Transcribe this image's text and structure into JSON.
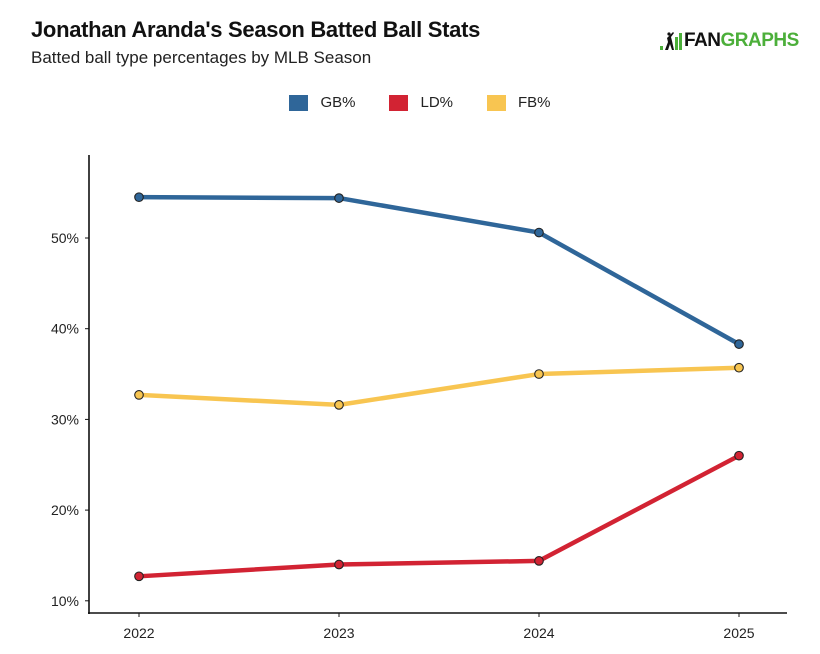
{
  "header": {
    "title": "Jonathan Aranda's Season Batted Ball Stats",
    "subtitle": "Batted ball type percentages by MLB Season",
    "logo_prefix": "FAN",
    "logo_suffix": "GRAPHS"
  },
  "chart_data": {
    "type": "line",
    "title": "Jonathan Aranda's Season Batted Ball Stats",
    "subtitle": "Batted ball type percentages by MLB Season",
    "xlabel": "",
    "ylabel": "",
    "x": [
      "2022",
      "2023",
      "2024",
      "2025"
    ],
    "ylim": [
      9,
      59
    ],
    "yticks": [
      10,
      20,
      30,
      40,
      50
    ],
    "ytick_labels": [
      "10%",
      "20%",
      "30%",
      "40%",
      "50%"
    ],
    "grid": false,
    "legend_position": "top-center",
    "series": [
      {
        "name": "GB%",
        "color": "#2f6699",
        "values": [
          54.5,
          54.4,
          50.6,
          38.3
        ]
      },
      {
        "name": "LD%",
        "color": "#d22333",
        "values": [
          12.7,
          14.0,
          14.4,
          26.0
        ]
      },
      {
        "name": "FB%",
        "color": "#f8c551",
        "values": [
          32.7,
          31.6,
          35.0,
          35.7
        ]
      }
    ]
  }
}
